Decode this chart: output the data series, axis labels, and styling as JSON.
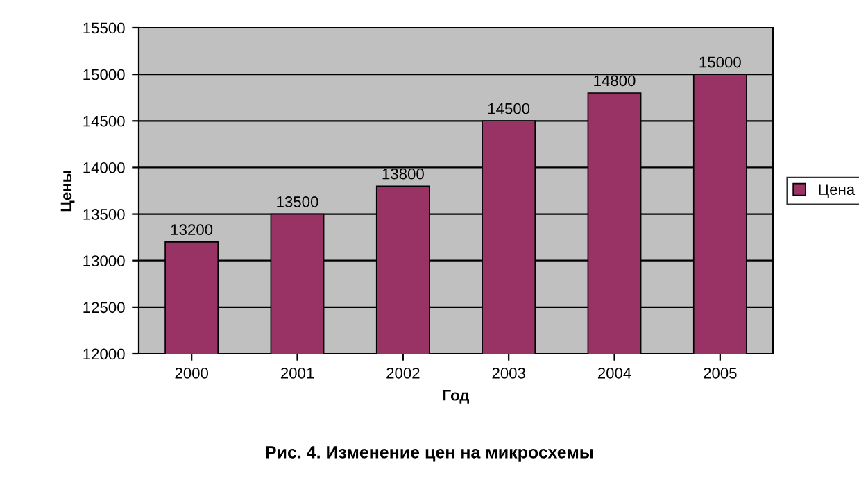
{
  "chart_data": {
    "type": "bar",
    "xlabel": "Год",
    "ylabel": "Цены",
    "categories": [
      "2000",
      "2001",
      "2002",
      "2003",
      "2004",
      "2005"
    ],
    "series": [
      {
        "name": "Цена",
        "color": "#993366",
        "values": [
          13200,
          13500,
          13800,
          14500,
          14800,
          15000
        ]
      }
    ],
    "ylim": [
      12000,
      15500
    ],
    "yticks": [
      12000,
      12500,
      13000,
      13500,
      14000,
      14500,
      15000,
      15500
    ],
    "grid": "y",
    "legend": "right",
    "data_labels": true,
    "annotations": [
      "Рис. 4. Изменение цен на микросхемы"
    ]
  }
}
